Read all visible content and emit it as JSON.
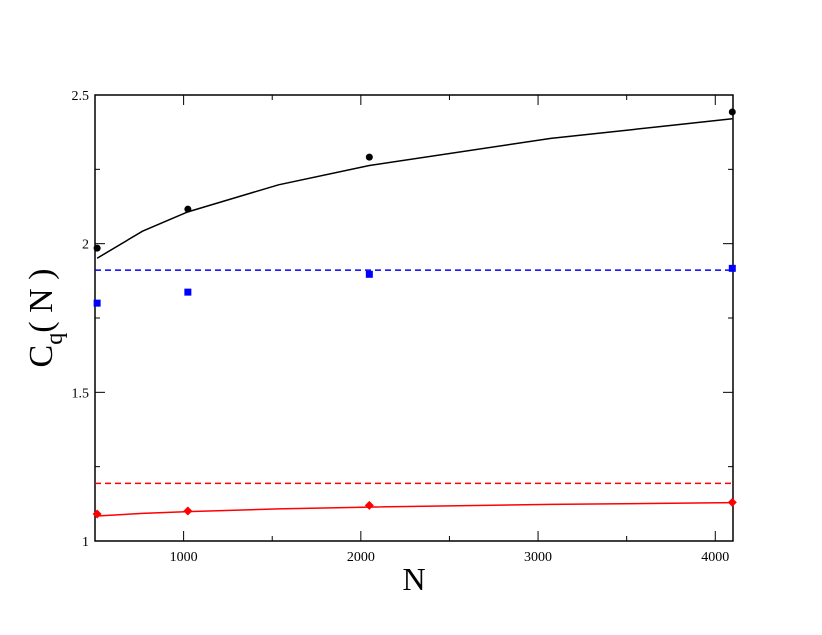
{
  "chart_data": {
    "type": "scatter",
    "xlabel": "N",
    "ylabel": {
      "main": "C",
      "sub": "q",
      "rest": "( N )"
    },
    "xlim": [
      500,
      4100
    ],
    "ylim": [
      1,
      2.5
    ],
    "xticks": [
      1000,
      2000,
      3000,
      4000
    ],
    "yticks": [
      1,
      1.5,
      2,
      2.5
    ],
    "xminor_ticks": [
      1500,
      2500,
      3500
    ],
    "yminor_ticks": [
      1.25,
      1.75,
      2.25
    ],
    "series": [
      {
        "color": "#000000",
        "style": "line",
        "x": [
          512,
          768,
          1024,
          1536,
          2048,
          3072,
          4096
        ],
        "values": [
          1.951,
          2.042,
          2.107,
          2.198,
          2.263,
          2.354,
          2.42
        ]
      },
      {
        "color": "#000000",
        "style": "marker",
        "marker": "circle",
        "x": [
          512,
          1024,
          2048,
          4096
        ],
        "values": [
          1.985,
          2.116,
          2.291,
          2.443
        ]
      },
      {
        "color": "#0000ff",
        "style": "dashed",
        "x": [
          500,
          4100
        ],
        "values": [
          1.911,
          1.911
        ]
      },
      {
        "color": "#0000ff",
        "style": "marker",
        "marker": "square",
        "x": [
          512,
          1024,
          2048,
          4096
        ],
        "values": [
          1.8,
          1.837,
          1.897,
          1.917
        ]
      },
      {
        "color": "#ff0000",
        "style": "dashed",
        "x": [
          500,
          4100
        ],
        "values": [
          1.194,
          1.194
        ]
      },
      {
        "color": "#ff0000",
        "style": "line",
        "x": [
          512,
          768,
          1024,
          1536,
          2048,
          3072,
          4096
        ],
        "values": [
          1.084,
          1.093,
          1.099,
          1.108,
          1.114,
          1.123,
          1.129
        ]
      },
      {
        "color": "#ff0000",
        "style": "marker",
        "marker": "diamond",
        "x": [
          512,
          1024,
          2048,
          4096
        ],
        "values": [
          1.091,
          1.101,
          1.12,
          1.13
        ]
      }
    ]
  }
}
